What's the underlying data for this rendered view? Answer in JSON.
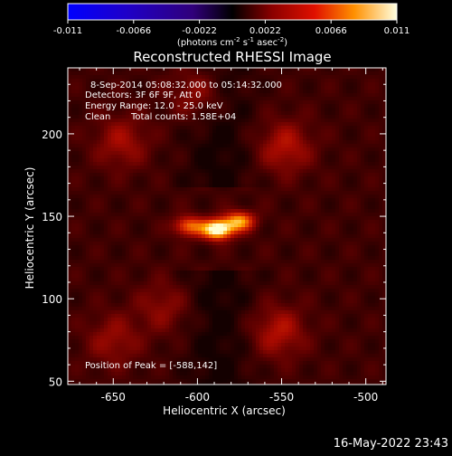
{
  "colorbar": {
    "ticks": [
      "-0.011",
      "-0.0066",
      "-0.0022",
      "0.0022",
      "0.0066",
      "0.011"
    ],
    "tick_values": [
      -0.011,
      -0.0066,
      -0.0022,
      0.0022,
      0.0066,
      0.011
    ],
    "range": [
      -0.011,
      0.011
    ],
    "unit_main": "(photons cm",
    "unit_exp1": "-2",
    "unit_mid": " s",
    "unit_exp2": "-1",
    "unit_mid2": " asec",
    "unit_exp3": "-2",
    "unit_close": ")"
  },
  "title": "Reconstructed RHESSI Image",
  "annotations": {
    "line1": "8-Sep-2014 05:08:32.000 to 05:14:32.000",
    "line2": "Detectors: 3F 6F 9F, Att 0",
    "line3": "Energy Range: 12.0 - 25.0 keV",
    "line4a": "Clean",
    "line4b": "Total counts: 1.58E+04",
    "peak": "Position of Peak = [-588,142]"
  },
  "chart_data": {
    "type": "heatmap",
    "xlabel": "Heliocentric X (arcsec)",
    "ylabel": "Heliocentric Y (arcsec)",
    "xlim": [
      -677,
      -488
    ],
    "ylim": [
      48,
      240
    ],
    "x_ticks": [
      {
        "value": -650,
        "label": "-650"
      },
      {
        "value": -600,
        "label": "-600"
      },
      {
        "value": -550,
        "label": "-550"
      },
      {
        "value": -500,
        "label": "-500"
      }
    ],
    "y_ticks": [
      {
        "value": 50,
        "label": "50"
      },
      {
        "value": 100,
        "label": "100"
      },
      {
        "value": 150,
        "label": "150"
      },
      {
        "value": 200,
        "label": "200"
      }
    ],
    "sources": [
      {
        "x": -588,
        "y": 142,
        "amp": 1.0
      },
      {
        "x": -575,
        "y": 147,
        "amp": 0.65
      },
      {
        "x": -605,
        "y": 144,
        "amp": 0.55
      },
      {
        "x": -548,
        "y": 192,
        "amp": 0.3
      },
      {
        "x": -645,
        "y": 195,
        "amp": 0.25
      },
      {
        "x": -552,
        "y": 80,
        "amp": 0.3
      },
      {
        "x": -650,
        "y": 75,
        "amp": 0.22
      },
      {
        "x": -620,
        "y": 95,
        "amp": 0.2
      },
      {
        "x": -600,
        "y": 225,
        "amp": 0.25
      }
    ],
    "peak": {
      "x": -588,
      "y": 142
    }
  },
  "timestamp": "16-May-2022 23:43"
}
